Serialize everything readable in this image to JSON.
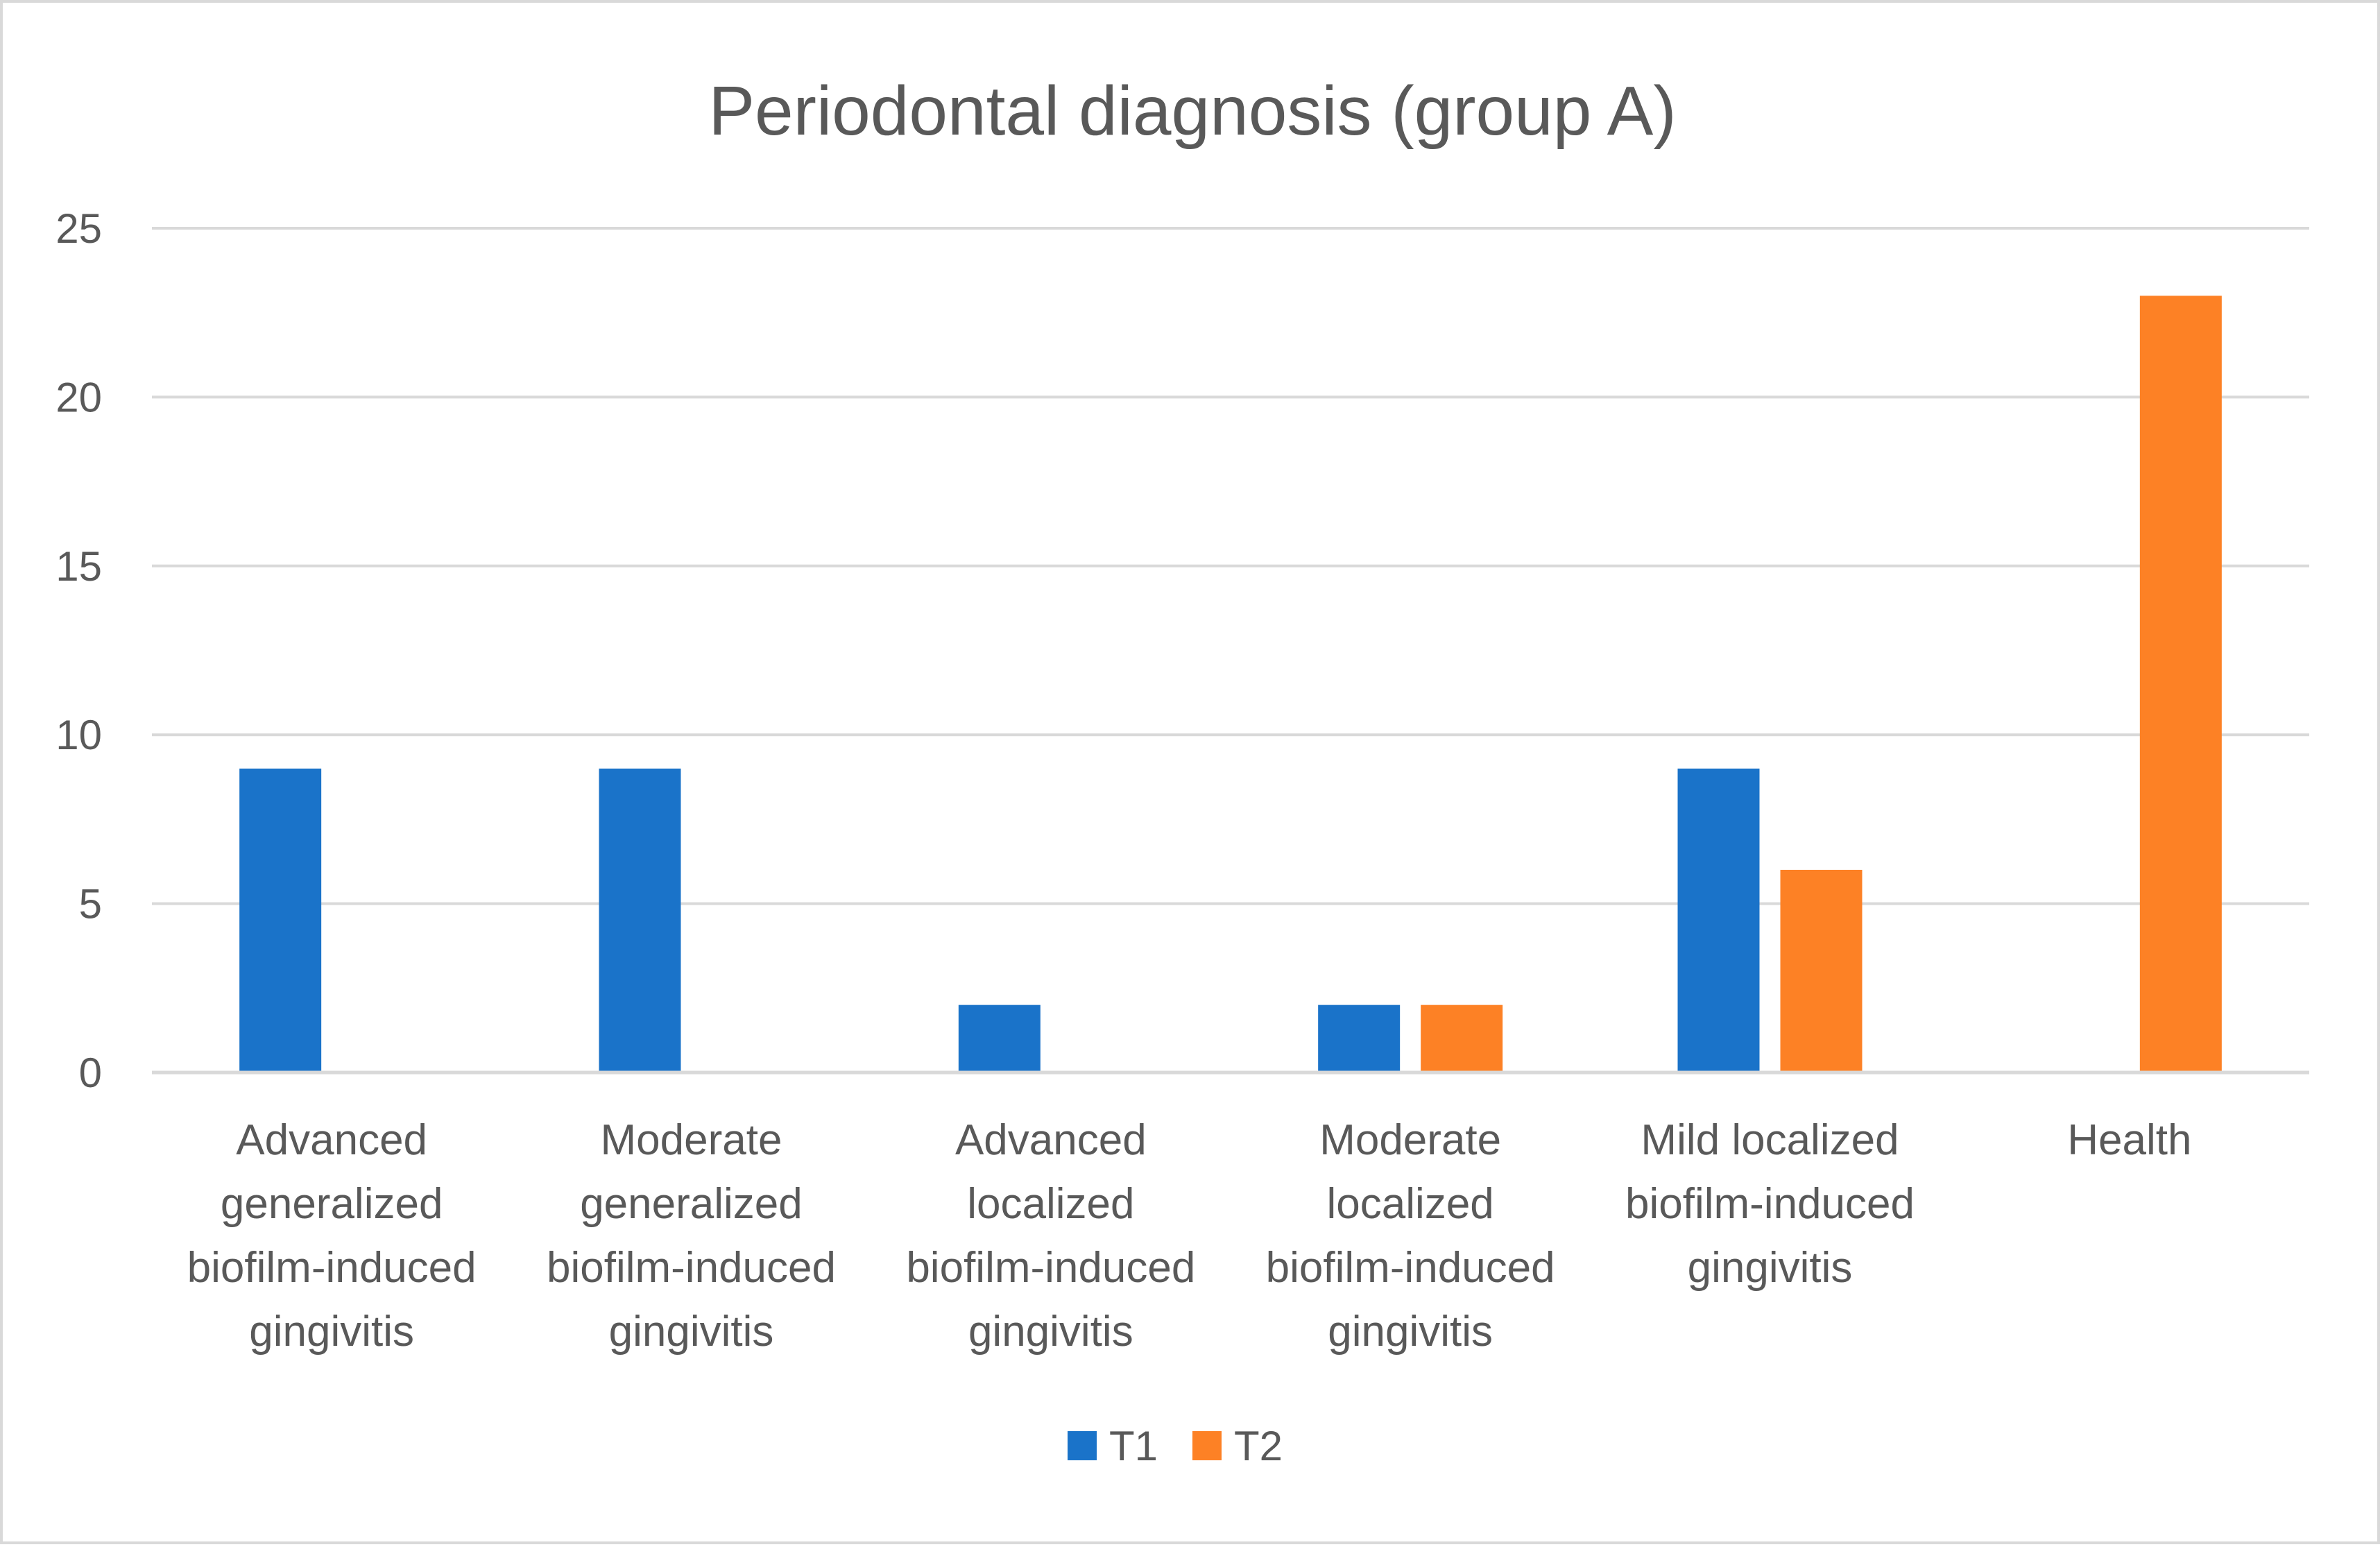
{
  "chart_data": {
    "type": "bar",
    "title": "Periodontal diagnosis (group A)",
    "xlabel": "",
    "ylabel": "",
    "ylim": [
      0,
      25
    ],
    "yticks": [
      0,
      5,
      10,
      15,
      20,
      25
    ],
    "grid": true,
    "legend_position": "bottom",
    "categories": [
      [
        "Advanced",
        "generalized",
        "biofilm-induced",
        "gingivitis"
      ],
      [
        "Moderate",
        "generalized",
        "biofilm-induced",
        "gingivitis"
      ],
      [
        "Advanced",
        "localized",
        "biofilm-induced",
        "gingivitis"
      ],
      [
        "Moderate",
        "localized",
        "biofilm-induced",
        "gingivitis"
      ],
      [
        "Mild localized",
        "biofilm-induced",
        "gingivitis"
      ],
      [
        "Health"
      ]
    ],
    "series": [
      {
        "name": "T1",
        "color": "#1a73c9",
        "values": [
          9,
          9,
          2,
          2,
          9,
          0
        ]
      },
      {
        "name": "T2",
        "color": "#fd8125",
        "values": [
          0,
          0,
          0,
          2,
          6,
          23
        ]
      }
    ]
  }
}
